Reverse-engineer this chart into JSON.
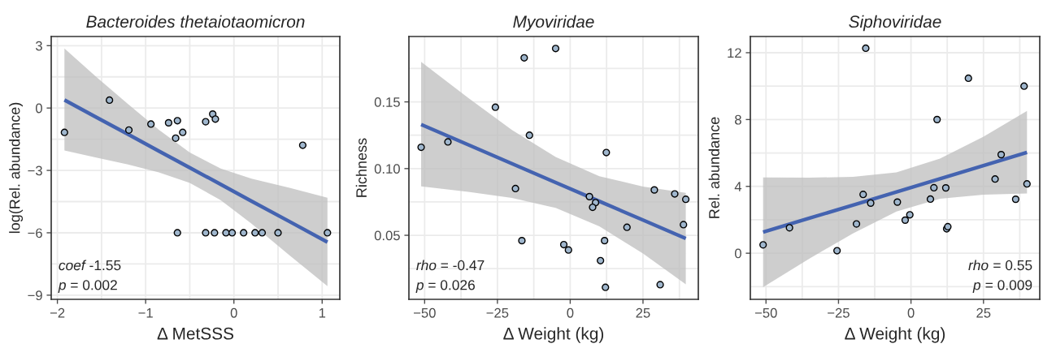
{
  "chart_data": [
    {
      "type": "scatter",
      "title": "Bacteroides thetaiotaomicron",
      "xlabel": "Δ MetSSS",
      "ylabel": "log(Rel. abundance)",
      "xlim": [
        -2.07,
        1.2
      ],
      "ylim": [
        -9.2,
        3.44
      ],
      "xticks": [
        -2,
        -1,
        0,
        1
      ],
      "yticks": [
        3,
        0,
        -3,
        -6,
        -9
      ],
      "grid": true,
      "annotations": [
        "coef -1.55",
        "p = 0.002"
      ],
      "series": [
        {
          "marker": "circle",
          "color": "#9fb6cd",
          "x": [
            -1.92,
            -1.41,
            -1.19,
            -0.94,
            -0.74,
            -0.64,
            -0.66,
            -0.58,
            -0.64,
            -0.32,
            -0.24,
            -0.21,
            0.78,
            -0.32,
            -0.22,
            -0.09,
            -0.02,
            0.11,
            0.24,
            0.32,
            0.5,
            1.06
          ],
          "values": [
            -1.17,
            0.38,
            -1.06,
            -0.77,
            -0.71,
            -0.61,
            -1.45,
            -1.17,
            -6,
            -0.66,
            -0.29,
            -0.53,
            -1.79,
            -6,
            -6,
            -6,
            -6,
            -6,
            -6,
            -6,
            -6,
            -6
          ]
        },
        {
          "type": "line",
          "color": "#4463b0",
          "x": [
            -1.92,
            -1.56,
            -1.2,
            -0.85,
            -0.5,
            -0.15,
            0.2,
            0.63,
            1.06
          ],
          "values": [
            0.39,
            -0.44,
            -1.26,
            -2.07,
            -2.87,
            -3.67,
            -4.48,
            -5.46,
            -6.45
          ],
          "lower": [
            -2.04,
            -2.38,
            -2.71,
            -3.09,
            -3.6,
            -4.43,
            -5.56,
            -7.08,
            -8.57
          ],
          "upper": [
            2.86,
            1.5,
            0.19,
            -1.05,
            -2.14,
            -2.91,
            -3.4,
            -3.84,
            -4.31
          ]
        }
      ]
    },
    {
      "type": "scatter",
      "title": "Myoviridae",
      "xlabel": "Δ Weight (kg)",
      "ylabel": "Richness",
      "xlim": [
        -55.4,
        44.0
      ],
      "ylim": [
        0.002,
        0.199
      ],
      "xticks": [
        -50,
        -25,
        0,
        25
      ],
      "yticks": [
        {
          "value": 0.05,
          "label": "0.05"
        },
        {
          "value": 0.1,
          "label": "0.10"
        },
        {
          "value": 0.15,
          "label": "0.15"
        }
      ],
      "grid": true,
      "annotations": [
        "rho = -0.47",
        "p = 0.026"
      ],
      "series": [
        {
          "marker": "circle",
          "color": "#9fb6cd",
          "x": [
            -51.2,
            -42.0,
            -25.7,
            -15.8,
            -5.0,
            -14.0,
            12.4,
            -18.8,
            -16.6,
            -2.2,
            -0.6,
            6.6,
            8.7,
            7.7,
            11.8,
            10.4,
            12.1,
            19.5,
            28.9,
            35.9,
            39.7,
            38.9,
            30.9
          ],
          "values": [
            0.116,
            0.12,
            0.146,
            0.183,
            0.19,
            0.125,
            0.112,
            0.085,
            0.046,
            0.043,
            0.039,
            0.079,
            0.0745,
            0.071,
            0.046,
            0.031,
            0.011,
            0.056,
            0.084,
            0.081,
            0.077,
            0.058,
            0.013
          ]
        },
        {
          "type": "line",
          "color": "#4463b0",
          "x": [
            -51.2,
            -35,
            -20,
            -5,
            10,
            25,
            39.7
          ],
          "values": [
            0.133,
            0.1178,
            0.1037,
            0.0896,
            0.0755,
            0.0614,
            0.0476
          ],
          "lower": [
            0.0867,
            0.0826,
            0.078,
            0.0705,
            0.0567,
            0.0363,
            0.0133
          ],
          "upper": [
            0.18,
            0.153,
            0.129,
            0.1087,
            0.0943,
            0.0865,
            0.0818
          ]
        }
      ]
    },
    {
      "type": "scatter",
      "title": "Siphoviridae",
      "xlabel": "Δ Weight (kg)",
      "ylabel": "Rel. abundance",
      "xlim": [
        -55.4,
        44.4
      ],
      "ylim": [
        -2.76,
        12.97
      ],
      "xticks": [
        -50,
        -25,
        0,
        25
      ],
      "yticks": [
        0,
        4,
        8,
        12
      ],
      "grid": true,
      "annotations": [
        "rho = 0.55",
        "p = 0.009"
      ],
      "series": [
        {
          "marker": "circle",
          "color": "#9fb6cd",
          "x": [
            -51.0,
            -41.9,
            -25.5,
            -18.8,
            -16.5,
            -15.6,
            -13.9,
            -4.7,
            -2.0,
            -0.4,
            6.7,
            7.9,
            9.0,
            12.0,
            12.3,
            12.7,
            19.8,
            29.0,
            31.1,
            36.1,
            39.0,
            40.0
          ],
          "values": [
            0.5,
            1.52,
            0.15,
            1.75,
            3.52,
            12.27,
            3.0,
            3.06,
            1.98,
            2.3,
            3.24,
            3.92,
            8.0,
            3.91,
            1.46,
            1.59,
            10.47,
            4.44,
            5.9,
            3.23,
            10.0,
            4.15
          ]
        },
        {
          "type": "line",
          "color": "#4463b0",
          "x": [
            -51,
            -35,
            -20,
            -5,
            10,
            25,
            40
          ],
          "values": [
            1.26,
            2.1,
            2.88,
            3.67,
            4.46,
            5.24,
            6.03
          ],
          "lower": [
            -2.03,
            -0.32,
            1.19,
            2.5,
            3.26,
            3.5,
            3.57
          ],
          "upper": [
            4.54,
            4.52,
            4.57,
            4.84,
            5.66,
            6.98,
            8.52
          ]
        }
      ]
    }
  ]
}
